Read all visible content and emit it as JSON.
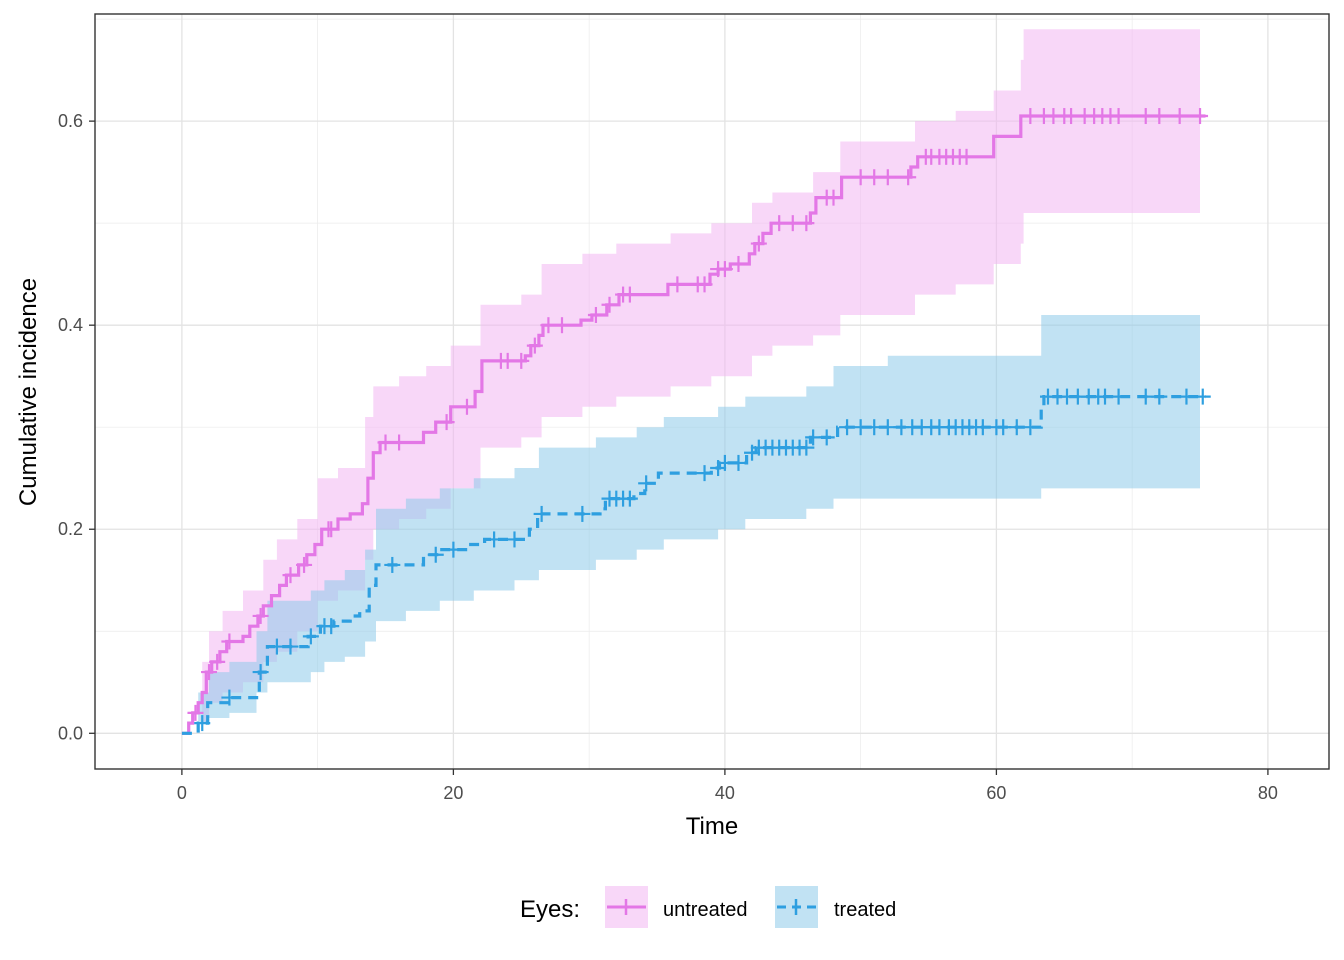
{
  "chart_data": {
    "type": "line",
    "title": "",
    "xlabel": "Time",
    "ylabel": "Cumulative incidence",
    "xlim": [
      -6.4,
      84.5
    ],
    "ylim": [
      -0.035,
      0.705
    ],
    "x_ticks": [
      0,
      20,
      40,
      60,
      80
    ],
    "x_tick_labels": [
      "0",
      "20",
      "40",
      "60",
      "80"
    ],
    "y_ticks": [
      0.0,
      0.2,
      0.4,
      0.6
    ],
    "y_tick_labels": [
      "0.0",
      "0.2",
      "0.4",
      "0.6"
    ],
    "grid": true,
    "legend": {
      "title": "Eyes:",
      "position": "bottom"
    },
    "series": [
      {
        "name": "untreated",
        "color": "#e377e6",
        "band_color": "#f2b6f2",
        "line_style": "solid",
        "steps": [
          [
            0,
            0.0
          ],
          [
            0.5,
            0.01
          ],
          [
            0.8,
            0.02
          ],
          [
            1.2,
            0.03
          ],
          [
            1.5,
            0.04
          ],
          [
            1.8,
            0.06
          ],
          [
            2.2,
            0.07
          ],
          [
            2.8,
            0.08
          ],
          [
            3.3,
            0.09
          ],
          [
            4.5,
            0.095
          ],
          [
            5.0,
            0.105
          ],
          [
            5.6,
            0.115
          ],
          [
            6.0,
            0.125
          ],
          [
            6.6,
            0.135
          ],
          [
            7.2,
            0.145
          ],
          [
            7.7,
            0.155
          ],
          [
            8.6,
            0.165
          ],
          [
            9.2,
            0.175
          ],
          [
            9.8,
            0.185
          ],
          [
            10.3,
            0.2
          ],
          [
            11.5,
            0.21
          ],
          [
            12.4,
            0.215
          ],
          [
            13.3,
            0.225
          ],
          [
            13.7,
            0.25
          ],
          [
            14.1,
            0.275
          ],
          [
            14.6,
            0.285
          ],
          [
            17.8,
            0.295
          ],
          [
            18.7,
            0.305
          ],
          [
            19.8,
            0.32
          ],
          [
            21.6,
            0.335
          ],
          [
            22.1,
            0.365
          ],
          [
            25.3,
            0.37
          ],
          [
            25.7,
            0.38
          ],
          [
            26.3,
            0.39
          ],
          [
            26.6,
            0.4
          ],
          [
            29.4,
            0.405
          ],
          [
            30.2,
            0.41
          ],
          [
            31.3,
            0.42
          ],
          [
            32.2,
            0.43
          ],
          [
            35.8,
            0.44
          ],
          [
            38.9,
            0.45
          ],
          [
            39.5,
            0.455
          ],
          [
            40.4,
            0.46
          ],
          [
            41.8,
            0.47
          ],
          [
            42.2,
            0.48
          ],
          [
            42.8,
            0.49
          ],
          [
            43.4,
            0.5
          ],
          [
            46.3,
            0.51
          ],
          [
            46.7,
            0.525
          ],
          [
            48.6,
            0.545
          ],
          [
            53.7,
            0.555
          ],
          [
            54.2,
            0.565
          ],
          [
            59.8,
            0.585
          ],
          [
            61.8,
            0.605
          ],
          [
            75.4,
            0.605
          ]
        ],
        "band": [
          [
            0,
            0.0,
            0.0
          ],
          [
            1.5,
            0.01,
            0.07
          ],
          [
            2.0,
            0.03,
            0.1
          ],
          [
            3.0,
            0.04,
            0.12
          ],
          [
            4.5,
            0.05,
            0.14
          ],
          [
            6.0,
            0.07,
            0.17
          ],
          [
            7.0,
            0.08,
            0.19
          ],
          [
            8.5,
            0.1,
            0.21
          ],
          [
            10.0,
            0.13,
            0.25
          ],
          [
            11.5,
            0.14,
            0.26
          ],
          [
            13.5,
            0.17,
            0.31
          ],
          [
            14.1,
            0.2,
            0.34
          ],
          [
            16.0,
            0.21,
            0.35
          ],
          [
            18.0,
            0.22,
            0.36
          ],
          [
            19.8,
            0.24,
            0.38
          ],
          [
            22.0,
            0.28,
            0.42
          ],
          [
            25.0,
            0.29,
            0.43
          ],
          [
            26.5,
            0.31,
            0.46
          ],
          [
            29.5,
            0.32,
            0.47
          ],
          [
            32.0,
            0.33,
            0.48
          ],
          [
            36.0,
            0.34,
            0.49
          ],
          [
            39.0,
            0.35,
            0.5
          ],
          [
            42.0,
            0.37,
            0.52
          ],
          [
            43.5,
            0.38,
            0.53
          ],
          [
            46.5,
            0.39,
            0.55
          ],
          [
            48.5,
            0.41,
            0.58
          ],
          [
            54.0,
            0.43,
            0.6
          ],
          [
            57.0,
            0.44,
            0.61
          ],
          [
            59.8,
            0.46,
            0.63
          ],
          [
            61.8,
            0.48,
            0.66
          ],
          [
            62.0,
            0.51,
            0.69
          ],
          [
            75.0,
            0.51,
            0.69
          ]
        ],
        "censor_times": [
          1.0,
          2.0,
          2.6,
          3.5,
          5.8,
          8.0,
          9.0,
          10.8,
          11.0,
          15.0,
          16.0,
          19.5,
          21.0,
          23.5,
          24.0,
          25.0,
          26.0,
          27.0,
          28.0,
          30.5,
          31.5,
          32.5,
          33.0,
          36.5,
          38.0,
          38.5,
          39.5,
          40.0,
          41.0,
          42.5,
          44.0,
          45.0,
          46.0,
          47.5,
          48.0,
          50.0,
          51.0,
          52.0,
          53.5,
          54.8,
          55.2,
          55.8,
          56.3,
          56.8,
          57.3,
          57.8,
          62.5,
          63.5,
          64.2,
          65.0,
          65.5,
          66.5,
          67.2,
          67.8,
          68.4,
          69.0,
          71.0,
          72.0,
          73.5,
          75.0
        ]
      },
      {
        "name": "treated",
        "color": "#2e9fe0",
        "band_color": "#8ecbea",
        "line_style": "dashed",
        "steps": [
          [
            0,
            0.0
          ],
          [
            1.2,
            0.01
          ],
          [
            1.9,
            0.03
          ],
          [
            3.5,
            0.035
          ],
          [
            5.7,
            0.06
          ],
          [
            6.3,
            0.085
          ],
          [
            9.3,
            0.095
          ],
          [
            10.2,
            0.105
          ],
          [
            11.2,
            0.11
          ],
          [
            12.4,
            0.115
          ],
          [
            13.1,
            0.12
          ],
          [
            13.8,
            0.145
          ],
          [
            14.3,
            0.165
          ],
          [
            17.8,
            0.175
          ],
          [
            19.0,
            0.18
          ],
          [
            21.1,
            0.185
          ],
          [
            22.3,
            0.19
          ],
          [
            25.6,
            0.2
          ],
          [
            26.2,
            0.215
          ],
          [
            30.8,
            0.22
          ],
          [
            31.2,
            0.23
          ],
          [
            33.3,
            0.235
          ],
          [
            34.1,
            0.245
          ],
          [
            35.1,
            0.255
          ],
          [
            39.0,
            0.26
          ],
          [
            39.6,
            0.265
          ],
          [
            41.6,
            0.275
          ],
          [
            42.3,
            0.28
          ],
          [
            46.3,
            0.29
          ],
          [
            48.3,
            0.3
          ],
          [
            63.3,
            0.32
          ],
          [
            63.5,
            0.33
          ],
          [
            75.4,
            0.33
          ]
        ],
        "band": [
          [
            0,
            0.0,
            0.0
          ],
          [
            1.2,
            0.01,
            0.04
          ],
          [
            2.0,
            0.015,
            0.06
          ],
          [
            3.5,
            0.02,
            0.07
          ],
          [
            5.5,
            0.04,
            0.1
          ],
          [
            6.3,
            0.05,
            0.13
          ],
          [
            9.5,
            0.06,
            0.14
          ],
          [
            10.5,
            0.07,
            0.15
          ],
          [
            12.0,
            0.075,
            0.16
          ],
          [
            13.5,
            0.09,
            0.18
          ],
          [
            14.3,
            0.11,
            0.22
          ],
          [
            16.5,
            0.12,
            0.23
          ],
          [
            19.0,
            0.13,
            0.24
          ],
          [
            21.5,
            0.14,
            0.25
          ],
          [
            24.5,
            0.15,
            0.26
          ],
          [
            26.3,
            0.16,
            0.28
          ],
          [
            30.5,
            0.17,
            0.29
          ],
          [
            33.5,
            0.18,
            0.3
          ],
          [
            35.5,
            0.19,
            0.31
          ],
          [
            39.5,
            0.2,
            0.32
          ],
          [
            41.5,
            0.21,
            0.33
          ],
          [
            46.0,
            0.22,
            0.34
          ],
          [
            48.0,
            0.23,
            0.36
          ],
          [
            52.0,
            0.23,
            0.37
          ],
          [
            63.3,
            0.24,
            0.41
          ],
          [
            75.0,
            0.24,
            0.41
          ]
        ],
        "censor_times": [
          1.5,
          3.5,
          5.8,
          7.0,
          8.0,
          9.5,
          10.5,
          11.0,
          15.5,
          18.7,
          20.0,
          23.0,
          24.5,
          26.5,
          29.5,
          31.5,
          32.0,
          32.5,
          33.0,
          34.2,
          38.5,
          39.5,
          40.0,
          41.0,
          42.0,
          42.5,
          43.0,
          43.5,
          44.0,
          44.5,
          45.0,
          45.5,
          46.0,
          46.5,
          47.5,
          49.0,
          50.0,
          51.0,
          52.0,
          53.0,
          53.8,
          54.5,
          55.2,
          55.8,
          56.5,
          57.0,
          57.5,
          58.0,
          58.5,
          59.0,
          60.0,
          60.5,
          61.5,
          62.5,
          63.8,
          64.5,
          65.2,
          66.0,
          66.8,
          67.5,
          68.0,
          69.0,
          71.0,
          72.0,
          74.0,
          75.2
        ]
      }
    ]
  }
}
